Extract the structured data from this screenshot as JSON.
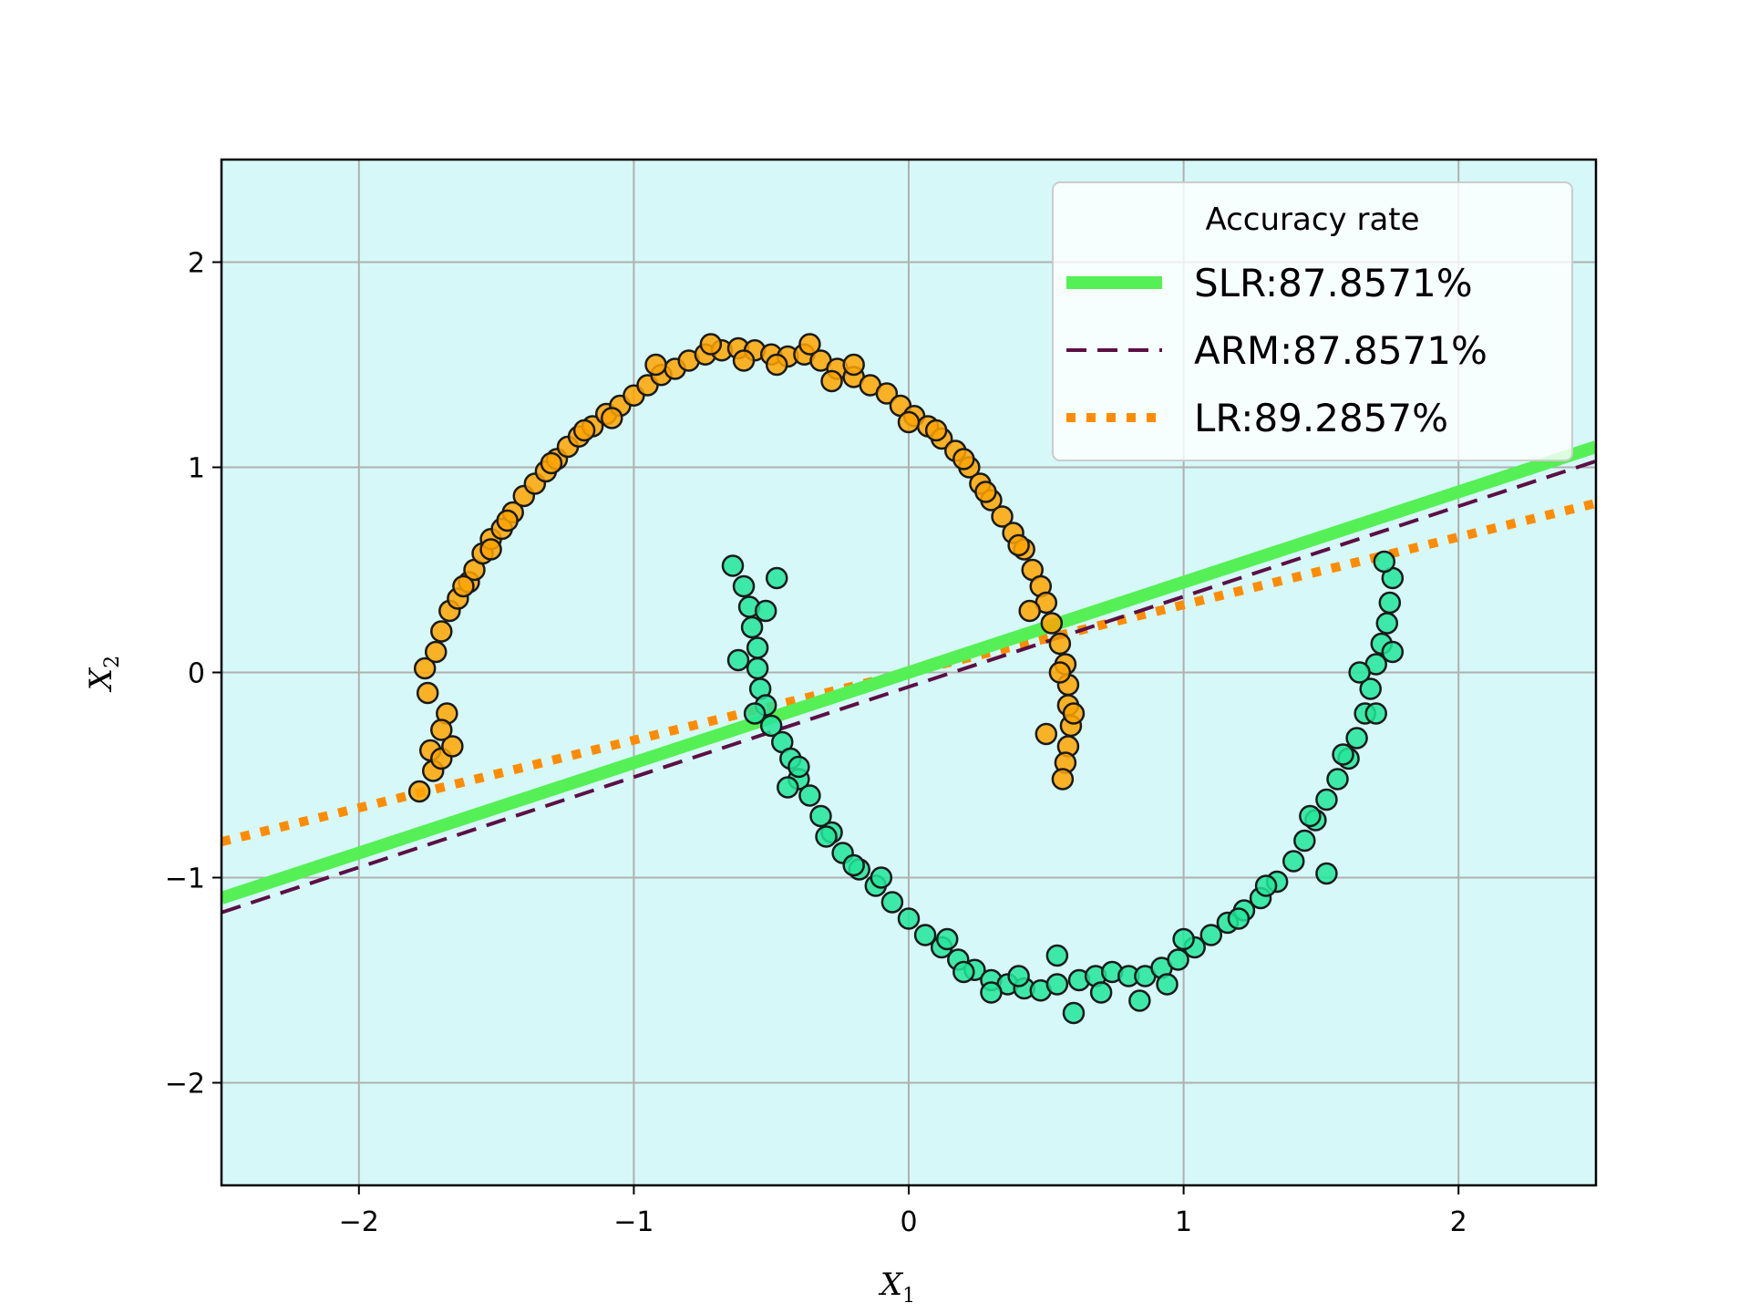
{
  "chart_data": {
    "type": "scatter",
    "title": "",
    "xlabel": "X",
    "xlabel_sub": "1",
    "ylabel": "X",
    "ylabel_sub": "2",
    "xlim": [
      -2.5,
      2.5
    ],
    "ylim": [
      -2.5,
      2.5
    ],
    "grid": true,
    "background_color": "#d6f8f8",
    "x_ticks": [
      -2,
      -1,
      0,
      1,
      2
    ],
    "y_ticks": [
      -2,
      -1,
      0,
      1,
      2
    ],
    "x_tick_labels": [
      "−2",
      "−1",
      "0",
      "1",
      "2"
    ],
    "y_tick_labels": [
      "−2",
      "−1",
      "0",
      "1",
      "2"
    ],
    "scatter_series": [
      {
        "class": "upper-moon",
        "color": "#ffa500",
        "edgecolor": "#1a1a1a",
        "points": [
          [
            -1.78,
            -0.58
          ],
          [
            -1.74,
            -0.38
          ],
          [
            -1.73,
            -0.48
          ],
          [
            -1.7,
            -0.42
          ],
          [
            -1.66,
            -0.36
          ],
          [
            -1.68,
            -0.2
          ],
          [
            -1.75,
            -0.1
          ],
          [
            -1.76,
            0.02
          ],
          [
            -1.72,
            0.1
          ],
          [
            -1.7,
            0.2
          ],
          [
            -1.67,
            0.3
          ],
          [
            -1.64,
            0.36
          ],
          [
            -1.6,
            0.44
          ],
          [
            -1.58,
            0.5
          ],
          [
            -1.55,
            0.58
          ],
          [
            -1.52,
            0.65
          ],
          [
            -1.48,
            0.7
          ],
          [
            -1.44,
            0.78
          ],
          [
            -1.4,
            0.86
          ],
          [
            -1.36,
            0.92
          ],
          [
            -1.32,
            0.98
          ],
          [
            -1.28,
            1.04
          ],
          [
            -1.24,
            1.1
          ],
          [
            -1.2,
            1.15
          ],
          [
            -1.15,
            1.2
          ],
          [
            -1.1,
            1.26
          ],
          [
            -1.05,
            1.3
          ],
          [
            -1.0,
            1.35
          ],
          [
            -0.95,
            1.4
          ],
          [
            -0.9,
            1.45
          ],
          [
            -0.85,
            1.48
          ],
          [
            -0.8,
            1.52
          ],
          [
            -0.74,
            1.55
          ],
          [
            -0.68,
            1.57
          ],
          [
            -0.62,
            1.58
          ],
          [
            -0.56,
            1.57
          ],
          [
            -0.5,
            1.55
          ],
          [
            -0.44,
            1.54
          ],
          [
            -0.38,
            1.55
          ],
          [
            -0.32,
            1.52
          ],
          [
            -0.26,
            1.48
          ],
          [
            -0.2,
            1.44
          ],
          [
            -0.14,
            1.4
          ],
          [
            -0.08,
            1.36
          ],
          [
            -0.03,
            1.3
          ],
          [
            0.02,
            1.25
          ],
          [
            0.07,
            1.2
          ],
          [
            0.12,
            1.14
          ],
          [
            0.17,
            1.08
          ],
          [
            0.22,
            1.0
          ],
          [
            0.26,
            0.92
          ],
          [
            0.3,
            0.84
          ],
          [
            0.34,
            0.76
          ],
          [
            0.38,
            0.68
          ],
          [
            0.42,
            0.6
          ],
          [
            0.45,
            0.5
          ],
          [
            0.48,
            0.42
          ],
          [
            0.5,
            0.34
          ],
          [
            0.52,
            0.24
          ],
          [
            0.55,
            0.14
          ],
          [
            0.57,
            0.04
          ],
          [
            0.58,
            -0.06
          ],
          [
            0.58,
            -0.16
          ],
          [
            0.59,
            -0.26
          ],
          [
            0.58,
            -0.36
          ],
          [
            0.57,
            -0.44
          ],
          [
            0.56,
            -0.52
          ],
          [
            -1.52,
            0.6
          ],
          [
            -1.3,
            1.02
          ],
          [
            -0.92,
            1.5
          ],
          [
            -0.6,
            1.52
          ],
          [
            -0.2,
            1.5
          ],
          [
            0.1,
            1.18
          ],
          [
            0.4,
            0.62
          ],
          [
            0.55,
            0.0
          ],
          [
            -1.62,
            0.42
          ],
          [
            -1.08,
            1.24
          ],
          [
            -0.72,
            1.6
          ],
          [
            -0.36,
            1.6
          ],
          [
            0.0,
            1.22
          ],
          [
            0.28,
            0.88
          ],
          [
            0.5,
            -0.3
          ],
          [
            -1.7,
            -0.28
          ],
          [
            -1.46,
            0.74
          ],
          [
            -0.48,
            1.5
          ],
          [
            0.6,
            -0.2
          ],
          [
            0.44,
            0.3
          ],
          [
            -1.18,
            1.18
          ],
          [
            -0.28,
            1.42
          ],
          [
            0.2,
            1.04
          ]
        ]
      },
      {
        "class": "lower-moon",
        "color": "#22e69a",
        "edgecolor": "#1a1a1a",
        "points": [
          [
            -0.64,
            0.52
          ],
          [
            -0.6,
            0.42
          ],
          [
            -0.58,
            0.32
          ],
          [
            -0.57,
            0.22
          ],
          [
            -0.55,
            0.12
          ],
          [
            -0.55,
            0.02
          ],
          [
            -0.54,
            -0.08
          ],
          [
            -0.52,
            -0.16
          ],
          [
            -0.5,
            -0.26
          ],
          [
            -0.46,
            -0.34
          ],
          [
            -0.43,
            -0.42
          ],
          [
            -0.4,
            -0.52
          ],
          [
            -0.36,
            -0.6
          ],
          [
            -0.32,
            -0.7
          ],
          [
            -0.28,
            -0.78
          ],
          [
            -0.24,
            -0.88
          ],
          [
            -0.18,
            -0.96
          ],
          [
            -0.12,
            -1.04
          ],
          [
            -0.06,
            -1.12
          ],
          [
            0.0,
            -1.2
          ],
          [
            0.06,
            -1.28
          ],
          [
            0.12,
            -1.34
          ],
          [
            0.18,
            -1.4
          ],
          [
            0.24,
            -1.45
          ],
          [
            0.3,
            -1.5
          ],
          [
            0.36,
            -1.52
          ],
          [
            0.42,
            -1.54
          ],
          [
            0.48,
            -1.55
          ],
          [
            0.54,
            -1.52
          ],
          [
            0.6,
            -1.66
          ],
          [
            0.62,
            -1.5
          ],
          [
            0.68,
            -1.48
          ],
          [
            0.74,
            -1.46
          ],
          [
            0.8,
            -1.48
          ],
          [
            0.86,
            -1.48
          ],
          [
            0.92,
            -1.44
          ],
          [
            0.98,
            -1.4
          ],
          [
            1.04,
            -1.34
          ],
          [
            1.1,
            -1.28
          ],
          [
            1.16,
            -1.22
          ],
          [
            1.22,
            -1.16
          ],
          [
            1.28,
            -1.1
          ],
          [
            1.34,
            -1.02
          ],
          [
            1.4,
            -0.92
          ],
          [
            1.44,
            -0.82
          ],
          [
            1.48,
            -0.72
          ],
          [
            1.52,
            -0.62
          ],
          [
            1.56,
            -0.52
          ],
          [
            1.6,
            -0.42
          ],
          [
            1.63,
            -0.32
          ],
          [
            1.66,
            -0.2
          ],
          [
            1.68,
            -0.08
          ],
          [
            1.7,
            0.04
          ],
          [
            1.72,
            0.14
          ],
          [
            1.74,
            0.24
          ],
          [
            1.75,
            0.34
          ],
          [
            1.76,
            0.46
          ],
          [
            1.73,
            0.54
          ],
          [
            1.52,
            -0.98
          ],
          [
            0.84,
            -1.6
          ],
          [
            -0.48,
            0.46
          ],
          [
            -0.62,
            0.06
          ],
          [
            -0.4,
            -0.46
          ],
          [
            -0.3,
            -0.8
          ],
          [
            -0.1,
            -1.0
          ],
          [
            0.14,
            -1.3
          ],
          [
            0.4,
            -1.48
          ],
          [
            0.7,
            -1.56
          ],
          [
            1.0,
            -1.3
          ],
          [
            1.3,
            -1.04
          ],
          [
            1.58,
            -0.4
          ],
          [
            1.7,
            -0.2
          ],
          [
            1.76,
            0.1
          ],
          [
            -0.56,
            -0.2
          ],
          [
            -0.2,
            -0.94
          ],
          [
            0.3,
            -1.56
          ],
          [
            0.94,
            -1.52
          ],
          [
            1.46,
            -0.7
          ],
          [
            1.64,
            0.0
          ],
          [
            -0.44,
            -0.56
          ],
          [
            0.2,
            -1.46
          ],
          [
            1.2,
            -1.2
          ],
          [
            -0.52,
            0.3
          ],
          [
            0.54,
            -1.38
          ]
        ]
      }
    ],
    "lines": [
      {
        "name": "SLR:87.8571%",
        "slope": 0.44,
        "intercept": 0.0,
        "color": "#55f055",
        "style": "solid",
        "width": 14
      },
      {
        "name": "ARM:87.8571%",
        "slope": 0.44,
        "intercept": -0.07,
        "color": "#5c0f45",
        "style": "dashed",
        "width": 4
      },
      {
        "name": "LR:89.2857%",
        "slope": 0.33,
        "intercept": 0.0,
        "color": "#ff8c00",
        "style": "dotted",
        "width": 10
      }
    ],
    "legend": {
      "title": "Accuracy rate",
      "placement": "top-right"
    }
  }
}
